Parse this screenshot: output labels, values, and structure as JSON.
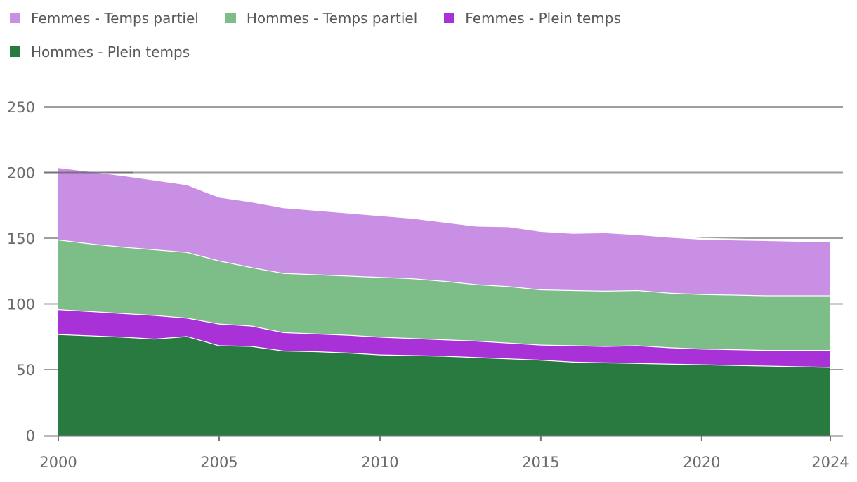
{
  "legend": {
    "items": [
      {
        "label": "Femmes - Temps partiel",
        "color": "#c98fe4"
      },
      {
        "label": "Hommes - Temps partiel",
        "color": "#7dbd87"
      },
      {
        "label": "Femmes - Plein temps",
        "color": "#a832d8"
      },
      {
        "label": "Hommes - Plein temps",
        "color": "#287a41"
      }
    ]
  },
  "axes": {
    "x_tick_labels": [
      "2000",
      "2005",
      "2010",
      "2015",
      "2020",
      "2024"
    ],
    "y_tick_labels": [
      "0",
      "50",
      "100",
      "150",
      "200",
      "250"
    ]
  },
  "colors": {
    "gridline": "#9e9e9e",
    "axis_line": "#757575",
    "tick": "#757575",
    "axis_text": "#6b6b6b",
    "legend_text": "#595959",
    "band_separator": "#ffffff"
  },
  "chart_data": {
    "type": "area",
    "stacked": true,
    "x": [
      2000,
      2001,
      2002,
      2003,
      2004,
      2005,
      2006,
      2007,
      2008,
      2009,
      2010,
      2011,
      2012,
      2013,
      2014,
      2015,
      2016,
      2017,
      2018,
      2019,
      2020,
      2021,
      2022,
      2023,
      2024
    ],
    "series": [
      {
        "name": "Hommes - Plein temps",
        "color": "#287a41",
        "values": [
          77,
          76,
          75,
          73.5,
          75.5,
          68.5,
          68,
          64.5,
          64,
          63,
          61.5,
          61,
          60.5,
          59.5,
          58.5,
          57.5,
          56,
          55.5,
          55,
          54.5,
          54,
          53.5,
          53,
          52.5,
          52
        ]
      },
      {
        "name": "Femmes - Plein temps",
        "color": "#a832d8",
        "values": [
          19,
          18.5,
          18,
          18,
          14,
          16.5,
          15.5,
          14,
          13.5,
          13.5,
          13.5,
          13,
          12.5,
          12.5,
          12,
          11.5,
          12.5,
          12.5,
          13.5,
          12.5,
          12,
          12,
          12,
          12.5,
          13
        ]
      },
      {
        "name": "Hommes - Temps partiel",
        "color": "#7dbd87",
        "values": [
          53,
          51.5,
          50.5,
          50,
          50,
          48,
          44.5,
          45,
          45,
          45,
          45.5,
          45.5,
          44.5,
          43,
          43,
          42,
          42,
          42,
          42,
          41.5,
          41.5,
          41.5,
          41.5,
          41.5,
          41.5
        ]
      },
      {
        "name": "Femmes - Temps partiel",
        "color": "#c98fe4",
        "values": [
          55,
          55,
          54.5,
          53,
          51.5,
          48.5,
          50,
          50,
          49,
          48,
          47,
          46,
          45,
          44.5,
          45.5,
          44.5,
          43.5,
          44.5,
          42.5,
          42.5,
          42,
          42,
          42,
          41.5,
          41
        ]
      }
    ],
    "stack_order_bottom_to_top": [
      "Hommes - Plein temps",
      "Femmes - Plein temps",
      "Hommes - Temps partiel",
      "Femmes - Temps partiel"
    ],
    "xticks": [
      2000,
      2005,
      2010,
      2015,
      2020,
      2024
    ],
    "yticks": [
      0,
      50,
      100,
      150,
      200,
      250
    ],
    "xlim": [
      2000,
      2024
    ],
    "ylim": [
      0,
      250
    ],
    "grid": "horizontal",
    "legend_position": "top-left"
  }
}
